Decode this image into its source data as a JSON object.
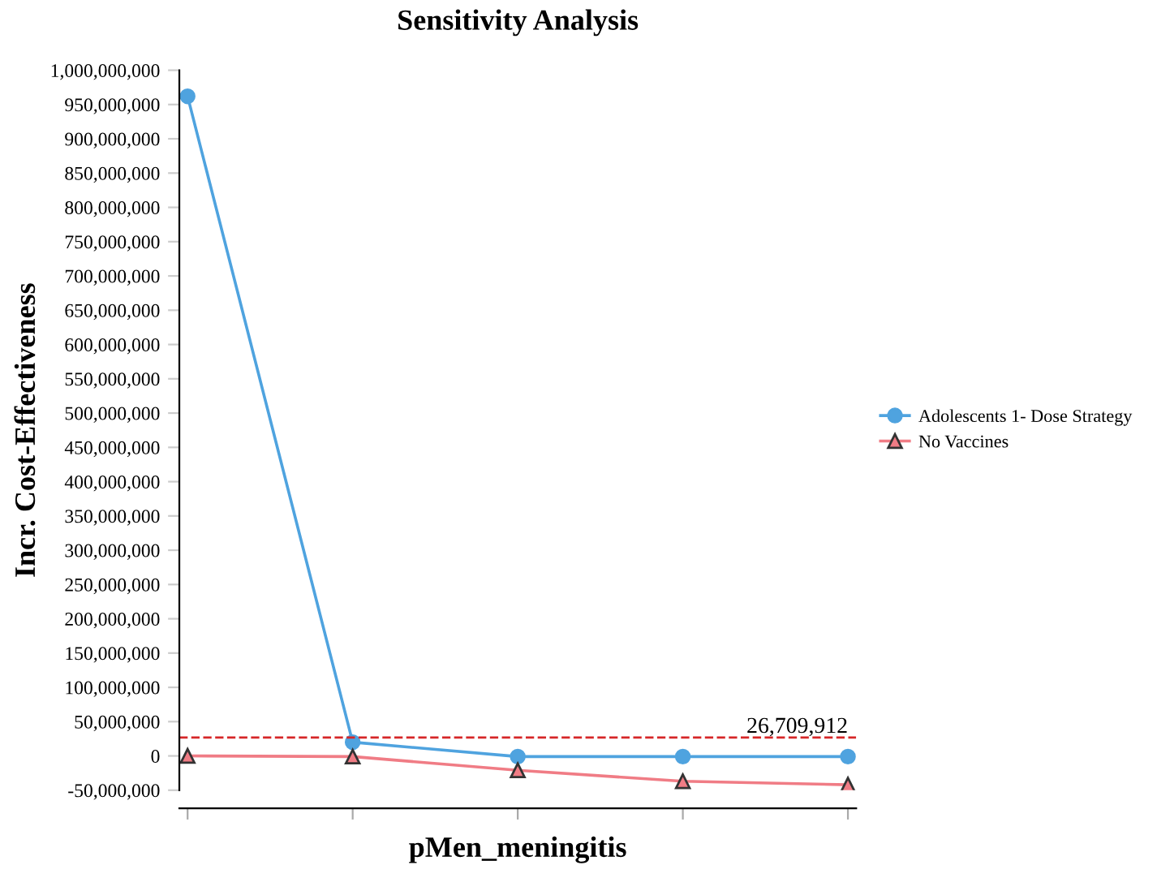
{
  "chart_data": {
    "type": "line",
    "title": "Sensitivity Analysis",
    "xlabel": "pMen_meningitis",
    "ylabel": "Incr. Cost-Effectiveness",
    "categories": [
      null,
      null,
      null,
      null,
      null
    ],
    "series": [
      {
        "name": "Adolescents 1- Dose Strategy",
        "color": "#4fa3df",
        "marker": "circle",
        "values": [
          962000000,
          20000000,
          -1000000,
          -1000000,
          -1000000
        ]
      },
      {
        "name": "No Vaccines",
        "color": "#f07c85",
        "marker": "triangle",
        "values": [
          0,
          -1000000,
          -21000000,
          -37000000,
          -42000000
        ]
      }
    ],
    "ylim": [
      -50000000,
      1000000000
    ],
    "yticks": [
      {
        "value": -50000000,
        "label": "-50,000,000"
      },
      {
        "value": 0,
        "label": "0"
      },
      {
        "value": 50000000,
        "label": "50,000,000"
      },
      {
        "value": 100000000,
        "label": "100,000,000"
      },
      {
        "value": 150000000,
        "label": "150,000,000"
      },
      {
        "value": 200000000,
        "label": "200,000,000"
      },
      {
        "value": 250000000,
        "label": "250,000,000"
      },
      {
        "value": 300000000,
        "label": "300,000,000"
      },
      {
        "value": 350000000,
        "label": "350,000,000"
      },
      {
        "value": 400000000,
        "label": "400,000,000"
      },
      {
        "value": 450000000,
        "label": "450,000,000"
      },
      {
        "value": 500000000,
        "label": "500,000,000"
      },
      {
        "value": 550000000,
        "label": "550,000,000"
      },
      {
        "value": 600000000,
        "label": "600,000,000"
      },
      {
        "value": 650000000,
        "label": "650,000,000"
      },
      {
        "value": 700000000,
        "label": "700,000,000"
      },
      {
        "value": 750000000,
        "label": "750,000,000"
      },
      {
        "value": 800000000,
        "label": "800,000,000"
      },
      {
        "value": 850000000,
        "label": "850,000,000"
      },
      {
        "value": 900000000,
        "label": "900,000,000"
      },
      {
        "value": 950000000,
        "label": "950,000,000"
      },
      {
        "value": 1000000000,
        "label": "1,000,000,000"
      }
    ],
    "ref_lines": [
      {
        "axis": "y",
        "value": 26709912,
        "label": "26,709,912",
        "color": "#d62728",
        "line_style": "dashed"
      }
    ],
    "grid": false,
    "legend": "right",
    "tick_labels": "y"
  }
}
